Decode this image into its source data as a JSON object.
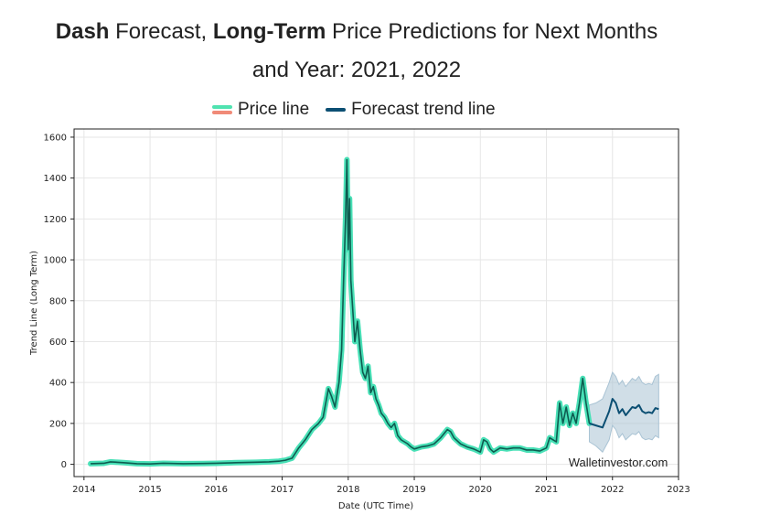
{
  "title": {
    "part1_bold": "Dash",
    "part2": " Forecast, ",
    "part3_bold": "Long-Term",
    "part4": " Price Predictions for Next Months",
    "line2": "and Year: 2021, 2022"
  },
  "legend": {
    "price_label": "Price line",
    "forecast_label": "Forecast trend line"
  },
  "colors": {
    "price_fill": "#48e0b6",
    "price_edge": "#0e5c50",
    "price_swatch_top": "#4fe3b0",
    "price_swatch_bottom": "#f08a78",
    "forecast": "#0c4f73",
    "band": "#a9c3d4"
  },
  "watermark": "Walletinvestor.com",
  "chart_data": {
    "type": "line",
    "xlabel": "Date (UTC Time)",
    "ylabel": "Trend Line (Long Term)",
    "xlim": [
      2013.85,
      2023.0
    ],
    "ylim": [
      -60,
      1640
    ],
    "x_ticks": [
      2014,
      2015,
      2016,
      2017,
      2018,
      2019,
      2020,
      2021,
      2022,
      2023
    ],
    "y_ticks": [
      0,
      200,
      400,
      600,
      800,
      1000,
      1200,
      1400,
      1600
    ],
    "grid": true,
    "legend_position": "top-center",
    "series": [
      {
        "name": "Price line",
        "x": [
          2014.1,
          2014.3,
          2014.4,
          2014.6,
          2014.8,
          2015.0,
          2015.2,
          2015.5,
          2015.8,
          2016.0,
          2016.3,
          2016.6,
          2016.8,
          2016.95,
          2017.05,
          2017.15,
          2017.25,
          2017.35,
          2017.45,
          2017.55,
          2017.62,
          2017.7,
          2017.75,
          2017.8,
          2017.86,
          2017.9,
          2017.93,
          2017.96,
          2017.98,
          2018.0,
          2018.02,
          2018.04,
          2018.06,
          2018.08,
          2018.1,
          2018.14,
          2018.18,
          2018.22,
          2018.26,
          2018.3,
          2018.34,
          2018.38,
          2018.42,
          2018.46,
          2018.5,
          2018.55,
          2018.6,
          2018.65,
          2018.7,
          2018.75,
          2018.8,
          2018.85,
          2018.9,
          2018.95,
          2019.0,
          2019.1,
          2019.2,
          2019.3,
          2019.4,
          2019.5,
          2019.55,
          2019.6,
          2019.7,
          2019.8,
          2019.9,
          2020.0,
          2020.05,
          2020.1,
          2020.15,
          2020.2,
          2020.3,
          2020.4,
          2020.5,
          2020.6,
          2020.7,
          2020.8,
          2020.9,
          2021.0,
          2021.05,
          2021.1,
          2021.15,
          2021.2,
          2021.25,
          2021.3,
          2021.35,
          2021.4,
          2021.45,
          2021.5,
          2021.55,
          2021.6,
          2021.65
        ],
        "y": [
          3,
          5,
          12,
          8,
          3,
          2,
          5,
          3,
          4,
          5,
          8,
          10,
          12,
          15,
          20,
          30,
          80,
          120,
          170,
          200,
          230,
          370,
          330,
          280,
          400,
          560,
          900,
          1200,
          1490,
          1050,
          1300,
          900,
          800,
          700,
          600,
          700,
          560,
          450,
          420,
          480,
          350,
          380,
          320,
          290,
          250,
          230,
          200,
          180,
          200,
          140,
          120,
          110,
          100,
          85,
          75,
          85,
          90,
          100,
          130,
          170,
          160,
          130,
          100,
          85,
          75,
          60,
          120,
          110,
          75,
          60,
          80,
          75,
          80,
          80,
          70,
          70,
          65,
          80,
          130,
          120,
          110,
          300,
          200,
          280,
          190,
          250,
          200,
          300,
          420,
          300,
          200
        ],
        "values": null
      },
      {
        "name": "Forecast trend line",
        "x": [
          2021.65,
          2021.75,
          2021.85,
          2021.95,
          2022.0,
          2022.05,
          2022.1,
          2022.15,
          2022.2,
          2022.3,
          2022.35,
          2022.4,
          2022.45,
          2022.5,
          2022.55,
          2022.6,
          2022.65,
          2022.7
        ],
        "y": [
          200,
          190,
          180,
          260,
          320,
          300,
          250,
          270,
          240,
          280,
          275,
          290,
          260,
          250,
          255,
          250,
          275,
          270
        ]
      }
    ],
    "band": {
      "x": [
        2021.65,
        2021.75,
        2021.85,
        2021.95,
        2022.0,
        2022.05,
        2022.1,
        2022.15,
        2022.2,
        2022.3,
        2022.35,
        2022.4,
        2022.45,
        2022.5,
        2022.55,
        2022.6,
        2022.65,
        2022.7
      ],
      "upper": [
        290,
        300,
        320,
        400,
        450,
        430,
        390,
        410,
        380,
        420,
        410,
        430,
        400,
        390,
        395,
        390,
        430,
        440
      ],
      "lower": [
        110,
        90,
        60,
        120,
        190,
        170,
        130,
        150,
        120,
        150,
        145,
        160,
        130,
        120,
        125,
        120,
        140,
        130
      ]
    }
  }
}
